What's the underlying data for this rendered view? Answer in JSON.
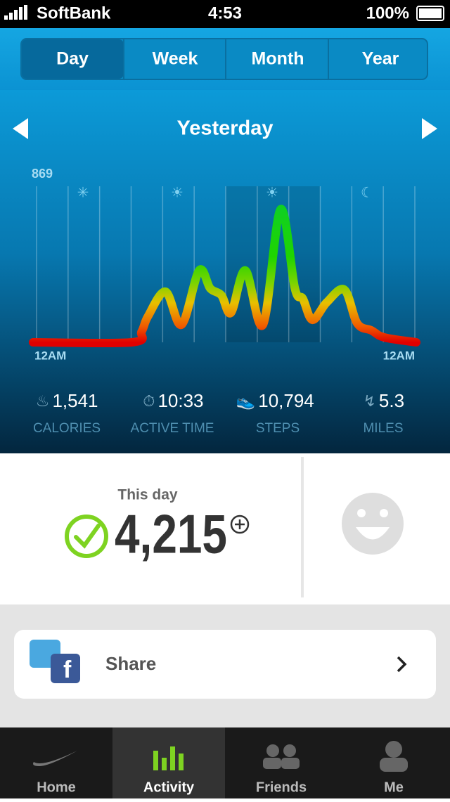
{
  "status_bar": {
    "carrier": "SoftBank",
    "time": "4:53",
    "battery": "100%"
  },
  "tabs": [
    "Day",
    "Week",
    "Month",
    "Year"
  ],
  "period": "Yesterday",
  "activity_chart": {
    "type": "line",
    "x": [
      0,
      6.2,
      6.8,
      7.2,
      8.3,
      9.3,
      10.4,
      11.1,
      11.8,
      12.4,
      13.3,
      14.4,
      15.5,
      16.4,
      16.9,
      17.5,
      18.4,
      19.5,
      20.3,
      21.2,
      22,
      24
    ],
    "values": [
      0,
      0,
      60,
      145,
      282,
      98,
      400,
      300,
      262,
      165,
      400,
      98,
      740,
      300,
      243,
      125,
      223,
      293,
      106,
      66,
      27,
      0
    ],
    "xlim": [
      0,
      24
    ],
    "xticks": [
      {
        "value": 0,
        "label": "12AM"
      },
      {
        "value": 24,
        "label": "12AM"
      }
    ],
    "ylim": [
      0,
      869
    ],
    "yticks": [
      869
    ]
  },
  "stats": [
    {
      "value": "1,541",
      "label": "CALORIES"
    },
    {
      "value": "10:33",
      "label": "ACTIVE TIME"
    },
    {
      "value": "10,794",
      "label": "STEPS"
    },
    {
      "value": "5.3",
      "label": "MILES"
    }
  ],
  "summary": {
    "caption": "This day",
    "fuel": "4,215"
  },
  "share": {
    "label": "Share"
  },
  "tab_bar": [
    "Home",
    "Activity",
    "Friends",
    "Me"
  ]
}
